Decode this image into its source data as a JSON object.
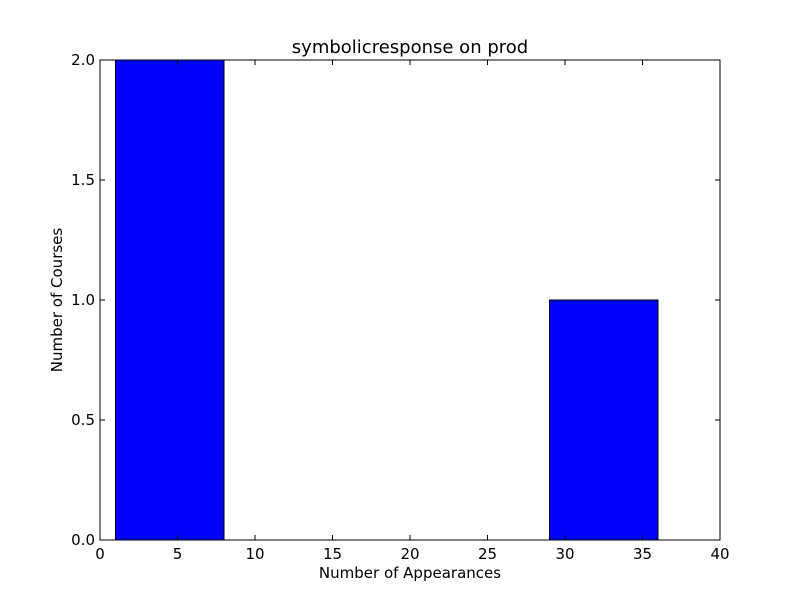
{
  "chart_data": {
    "type": "bar",
    "title": "symbolicresponse on prod",
    "xlabel": "Number of Appearances",
    "ylabel": "Number of Courses",
    "xlim": [
      0,
      40
    ],
    "ylim": [
      0,
      2
    ],
    "xticks": [
      0,
      5,
      10,
      15,
      20,
      25,
      30,
      35,
      40
    ],
    "yticks": [
      0.0,
      0.5,
      1.0,
      1.5,
      2.0
    ],
    "xtick_labels": [
      "0",
      "5",
      "10",
      "15",
      "20",
      "25",
      "30",
      "35",
      "40"
    ],
    "ytick_labels": [
      "0.0",
      "0.5",
      "1.0",
      "1.5",
      "2.0"
    ],
    "bins": [
      {
        "x0": 1.0,
        "x1": 8.0,
        "value": 2
      },
      {
        "x0": 8.0,
        "x1": 15.0,
        "value": 0
      },
      {
        "x0": 15.0,
        "x1": 22.0,
        "value": 0
      },
      {
        "x0": 22.0,
        "x1": 29.0,
        "value": 0
      },
      {
        "x0": 29.0,
        "x1": 36.0,
        "value": 1
      }
    ],
    "bar_color": "#0000ff",
    "grid": false
  }
}
